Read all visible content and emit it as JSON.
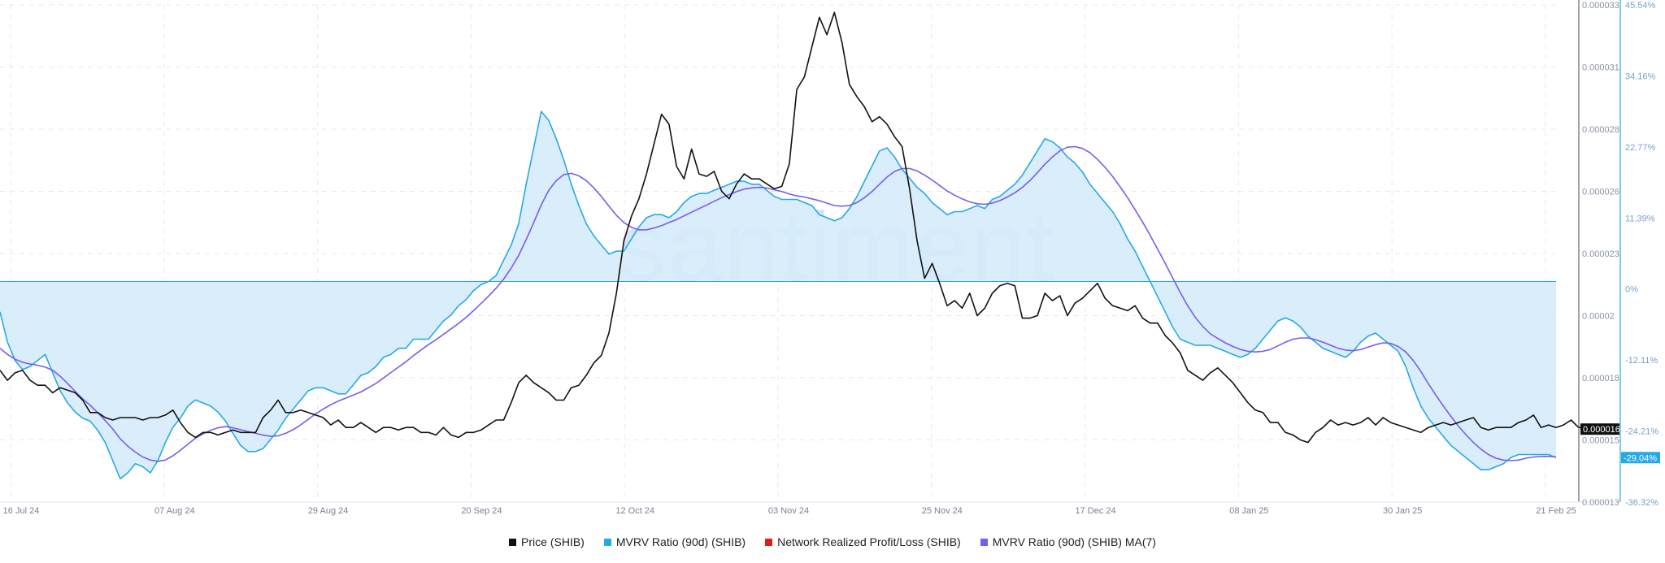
{
  "chart_data": {
    "type": "line",
    "watermark": "santiment",
    "x_tick_labels": [
      "16 Jul 24",
      "07 Aug 24",
      "29 Aug 24",
      "20 Sep 24",
      "12 Oct 24",
      "03 Nov 24",
      "25 Nov 24",
      "17 Dec 24",
      "08 Jan 25",
      "30 Jan 25",
      "21 Feb 25"
    ],
    "y_left_ticks": [
      "0.000033",
      "0.000031",
      "0.000028",
      "0.000026",
      "0.000023",
      "0.00002",
      "0.000018",
      "0.000015",
      "0.000013"
    ],
    "y_left_range": [
      1.3e-05,
      3.3e-05
    ],
    "y_right_ticks": [
      "45.54%",
      "34.16%",
      "22.77%",
      "11.39%",
      "0%",
      "-12.11%",
      "-24.21%",
      "-36.32%"
    ],
    "y_right_range": [
      -36.32,
      45.54
    ],
    "price_badge": "0.000016",
    "mvrv_badge": "-29.04%",
    "grid": true,
    "legend_position": "bottom",
    "colors": {
      "price": "#111111",
      "mvrv": "#26a9e8",
      "mvrv_fill": "#d5ebfa",
      "nrpl": "#e31b1b",
      "ma": "#7a5cf0",
      "grid": "#e6e9ef",
      "axis": "#26a9e8"
    },
    "series": [
      {
        "name": "Price (SHIB)",
        "axis": "left",
        "values": [
          1.83e-05,
          1.79e-05,
          1.82e-05,
          1.83e-05,
          1.79e-05,
          1.77e-05,
          1.77e-05,
          1.74e-05,
          1.76e-05,
          1.75e-05,
          1.74e-05,
          1.71e-05,
          1.66e-05,
          1.66e-05,
          1.64e-05,
          1.63e-05,
          1.64e-05,
          1.64e-05,
          1.64e-05,
          1.63e-05,
          1.64e-05,
          1.64e-05,
          1.65e-05,
          1.67e-05,
          1.62e-05,
          1.58e-05,
          1.56e-05,
          1.58e-05,
          1.58e-05,
          1.57e-05,
          1.58e-05,
          1.59e-05,
          1.58e-05,
          1.58e-05,
          1.58e-05,
          1.64e-05,
          1.67e-05,
          1.71e-05,
          1.66e-05,
          1.66e-05,
          1.67e-05,
          1.66e-05,
          1.65e-05,
          1.64e-05,
          1.61e-05,
          1.63e-05,
          1.6e-05,
          1.6e-05,
          1.62e-05,
          1.6e-05,
          1.58e-05,
          1.6e-05,
          1.6e-05,
          1.59e-05,
          1.6e-05,
          1.6e-05,
          1.58e-05,
          1.58e-05,
          1.57e-05,
          1.6e-05,
          1.57e-05,
          1.56e-05,
          1.58e-05,
          1.58e-05,
          1.59e-05,
          1.61e-05,
          1.63e-05,
          1.63e-05,
          1.7e-05,
          1.78e-05,
          1.81e-05,
          1.78e-05,
          1.76e-05,
          1.74e-05,
          1.71e-05,
          1.71e-05,
          1.76e-05,
          1.77e-05,
          1.81e-05,
          1.86e-05,
          1.89e-05,
          1.98e-05,
          2.14e-05,
          2.35e-05,
          2.45e-05,
          2.52e-05,
          2.62e-05,
          2.74e-05,
          2.86e-05,
          2.82e-05,
          2.65e-05,
          2.6e-05,
          2.72e-05,
          2.62e-05,
          2.61e-05,
          2.63e-05,
          2.55e-05,
          2.52e-05,
          2.58e-05,
          2.62e-05,
          2.6e-05,
          2.6e-05,
          2.58e-05,
          2.56e-05,
          2.57e-05,
          2.66e-05,
          2.96e-05,
          3.01e-05,
          3.13e-05,
          3.25e-05,
          3.18e-05,
          3.27e-05,
          3.15e-05,
          2.98e-05,
          2.93e-05,
          2.89e-05,
          2.83e-05,
          2.85e-05,
          2.82e-05,
          2.77e-05,
          2.73e-05,
          2.56e-05,
          2.35e-05,
          2.2e-05,
          2.26e-05,
          2.18e-05,
          2.09e-05,
          2.11e-05,
          2.08e-05,
          2.14e-05,
          2.05e-05,
          2.08e-05,
          2.14e-05,
          2.17e-05,
          2.18e-05,
          2.17e-05,
          2.04e-05,
          2.04e-05,
          2.05e-05,
          2.14e-05,
          2.11e-05,
          2.13e-05,
          2.05e-05,
          2.1e-05,
          2.12e-05,
          2.15e-05,
          2.18e-05,
          2.12e-05,
          2.09e-05,
          2.08e-05,
          2.07e-05,
          2.09e-05,
          2.04e-05,
          2.02e-05,
          2.02e-05,
          1.97e-05,
          1.94e-05,
          1.9e-05,
          1.83e-05,
          1.81e-05,
          1.79e-05,
          1.82e-05,
          1.84e-05,
          1.81e-05,
          1.78e-05,
          1.74e-05,
          1.7e-05,
          1.67e-05,
          1.66e-05,
          1.62e-05,
          1.62e-05,
          1.58e-05,
          1.57e-05,
          1.55e-05,
          1.54e-05,
          1.58e-05,
          1.6e-05,
          1.63e-05,
          1.61e-05,
          1.62e-05,
          1.61e-05,
          1.62e-05,
          1.64e-05,
          1.61e-05,
          1.64e-05,
          1.62e-05,
          1.61e-05,
          1.6e-05,
          1.59e-05,
          1.58e-05,
          1.6e-05,
          1.61e-05,
          1.62e-05,
          1.61e-05,
          1.62e-05,
          1.63e-05,
          1.64e-05,
          1.6e-05,
          1.59e-05,
          1.6e-05,
          1.6e-05,
          1.6e-05,
          1.62e-05,
          1.63e-05,
          1.65e-05,
          1.6e-05,
          1.61e-05,
          1.6e-05,
          1.61e-05,
          1.63e-05,
          1.6e-05,
          1.6e-05
        ]
      },
      {
        "name": "MVRV Ratio (90d) (SHIB)",
        "axis": "right",
        "values": [
          -5.0,
          -10.0,
          -13.0,
          -14.5,
          -14.0,
          -13.0,
          -12.0,
          -15.0,
          -18.0,
          -20.0,
          -21.5,
          -22.5,
          -23.0,
          -24.5,
          -26.5,
          -29.5,
          -32.5,
          -31.5,
          -30.0,
          -30.5,
          -31.5,
          -29.5,
          -26.5,
          -24.0,
          -22.5,
          -20.5,
          -19.5,
          -20.0,
          -20.5,
          -21.5,
          -23.0,
          -25.0,
          -27.0,
          -28.0,
          -28.0,
          -27.5,
          -26.0,
          -24.5,
          -22.5,
          -21.0,
          -19.5,
          -18.0,
          -17.5,
          -17.5,
          -18.0,
          -18.5,
          -18.5,
          -17.0,
          -15.5,
          -15.0,
          -14.0,
          -12.5,
          -12.0,
          -11.0,
          -11.0,
          -9.5,
          -9.5,
          -9.5,
          -8.0,
          -6.5,
          -5.5,
          -4.0,
          -3.0,
          -1.5,
          -0.5,
          0.0,
          1.0,
          3.5,
          6.0,
          9.5,
          16.0,
          22.0,
          28.0,
          26.5,
          23.5,
          20.0,
          16.0,
          12.5,
          9.5,
          7.5,
          6.0,
          4.5,
          5.0,
          5.0,
          7.0,
          9.0,
          10.5,
          11.0,
          11.0,
          10.5,
          11.5,
          13.0,
          14.0,
          14.5,
          14.5,
          15.0,
          15.5,
          16.0,
          16.5,
          16.5,
          16.0,
          16.0,
          15.0,
          14.0,
          13.5,
          13.5,
          13.5,
          13.0,
          12.5,
          11.0,
          10.5,
          10.0,
          10.5,
          12.0,
          14.0,
          16.5,
          19.0,
          21.5,
          22.0,
          20.5,
          18.5,
          17.0,
          15.5,
          14.5,
          13.0,
          12.0,
          11.0,
          11.5,
          11.5,
          12.0,
          12.5,
          12.0,
          13.5,
          14.0,
          15.0,
          16.0,
          17.5,
          19.5,
          21.5,
          23.5,
          23.0,
          22.0,
          20.5,
          19.5,
          18.0,
          16.0,
          14.5,
          13.0,
          11.5,
          9.5,
          7.0,
          5.0,
          2.5,
          0.0,
          -2.5,
          -5.0,
          -7.5,
          -9.5,
          -10.0,
          -10.5,
          -10.5,
          -10.5,
          -11.0,
          -11.5,
          -12.0,
          -12.5,
          -12.0,
          -11.0,
          -9.5,
          -8.0,
          -6.5,
          -6.0,
          -6.5,
          -7.5,
          -9.0,
          -10.0,
          -11.0,
          -11.5,
          -12.0,
          -12.5,
          -11.5,
          -10.0,
          -9.0,
          -8.5,
          -9.5,
          -10.5,
          -11.5,
          -14.0,
          -17.5,
          -20.5,
          -22.5,
          -24.0,
          -25.5,
          -27.0,
          -28.0,
          -29.0,
          -30.0,
          -31.0,
          -31.0,
          -30.5,
          -30.0,
          -29.0,
          -28.5,
          -28.5,
          -28.5,
          -28.5,
          -28.5,
          -29.0
        ]
      },
      {
        "name": "Network Realized Profit/Loss (SHIB)",
        "axis": "none",
        "values": []
      },
      {
        "name": "MVRV Ratio (90d) (SHIB) MA(7)",
        "axis": "right",
        "values": [
          -11.0,
          -12.0,
          -12.8,
          -13.3,
          -13.6,
          -13.8,
          -14.1,
          -14.6,
          -15.6,
          -16.8,
          -18.1,
          -19.3,
          -20.4,
          -21.6,
          -22.9,
          -24.3,
          -25.9,
          -27.1,
          -28.1,
          -28.9,
          -29.4,
          -29.6,
          -29.4,
          -28.7,
          -27.8,
          -26.8,
          -25.8,
          -25.1,
          -24.5,
          -24.1,
          -23.9,
          -24.1,
          -24.4,
          -24.7,
          -25.0,
          -25.3,
          -25.5,
          -25.4,
          -25.0,
          -24.4,
          -23.6,
          -22.7,
          -21.8,
          -21.0,
          -20.3,
          -19.7,
          -19.2,
          -18.7,
          -18.2,
          -17.5,
          -16.8,
          -15.9,
          -15.0,
          -14.1,
          -13.2,
          -12.2,
          -11.3,
          -10.4,
          -9.6,
          -8.7,
          -7.8,
          -6.9,
          -5.9,
          -4.8,
          -3.6,
          -2.4,
          -1.1,
          0.4,
          2.2,
          4.3,
          6.9,
          9.7,
          12.6,
          15.0,
          16.6,
          17.6,
          17.8,
          17.4,
          16.6,
          15.4,
          14.0,
          12.4,
          10.9,
          9.7,
          8.9,
          8.5,
          8.5,
          8.8,
          9.2,
          9.7,
          10.2,
          10.8,
          11.4,
          12.0,
          12.6,
          13.2,
          13.8,
          14.3,
          14.8,
          15.2,
          15.4,
          15.5,
          15.4,
          15.1,
          14.8,
          14.4,
          14.1,
          13.9,
          13.6,
          13.3,
          12.9,
          12.5,
          12.4,
          12.5,
          13.0,
          13.8,
          14.8,
          16.0,
          17.2,
          18.1,
          18.6,
          18.6,
          18.2,
          17.5,
          16.7,
          15.8,
          14.9,
          14.2,
          13.6,
          13.1,
          12.8,
          12.7,
          12.9,
          13.3,
          13.9,
          14.6,
          15.5,
          16.6,
          17.9,
          19.3,
          20.5,
          21.5,
          22.1,
          22.2,
          21.9,
          21.2,
          20.1,
          18.8,
          17.3,
          15.6,
          13.8,
          11.8,
          9.8,
          7.6,
          5.3,
          3.0,
          0.6,
          -1.8,
          -4.0,
          -5.9,
          -7.4,
          -8.6,
          -9.4,
          -10.1,
          -10.7,
          -11.2,
          -11.5,
          -11.6,
          -11.5,
          -11.2,
          -10.6,
          -10.0,
          -9.5,
          -9.3,
          -9.3,
          -9.6,
          -10.0,
          -10.5,
          -11.0,
          -11.3,
          -11.4,
          -11.2,
          -10.8,
          -10.4,
          -10.1,
          -10.2,
          -10.7,
          -11.6,
          -13.0,
          -14.8,
          -16.8,
          -18.7,
          -20.5,
          -22.2,
          -23.8,
          -25.2,
          -26.5,
          -27.6,
          -28.5,
          -29.1,
          -29.4,
          -29.5,
          -29.4,
          -29.1,
          -28.9,
          -28.8,
          -28.8,
          -28.9
        ]
      }
    ]
  },
  "legend": [
    {
      "label": "Price (SHIB)",
      "color": "#111111"
    },
    {
      "label": "MVRV Ratio (90d) (SHIB)",
      "color": "#26a9e8"
    },
    {
      "label": "Network Realized Profit/Loss (SHIB)",
      "color": "#e31b1b"
    },
    {
      "label": "MVRV Ratio (90d) (SHIB) MA(7)",
      "color": "#7a5cf0"
    }
  ]
}
